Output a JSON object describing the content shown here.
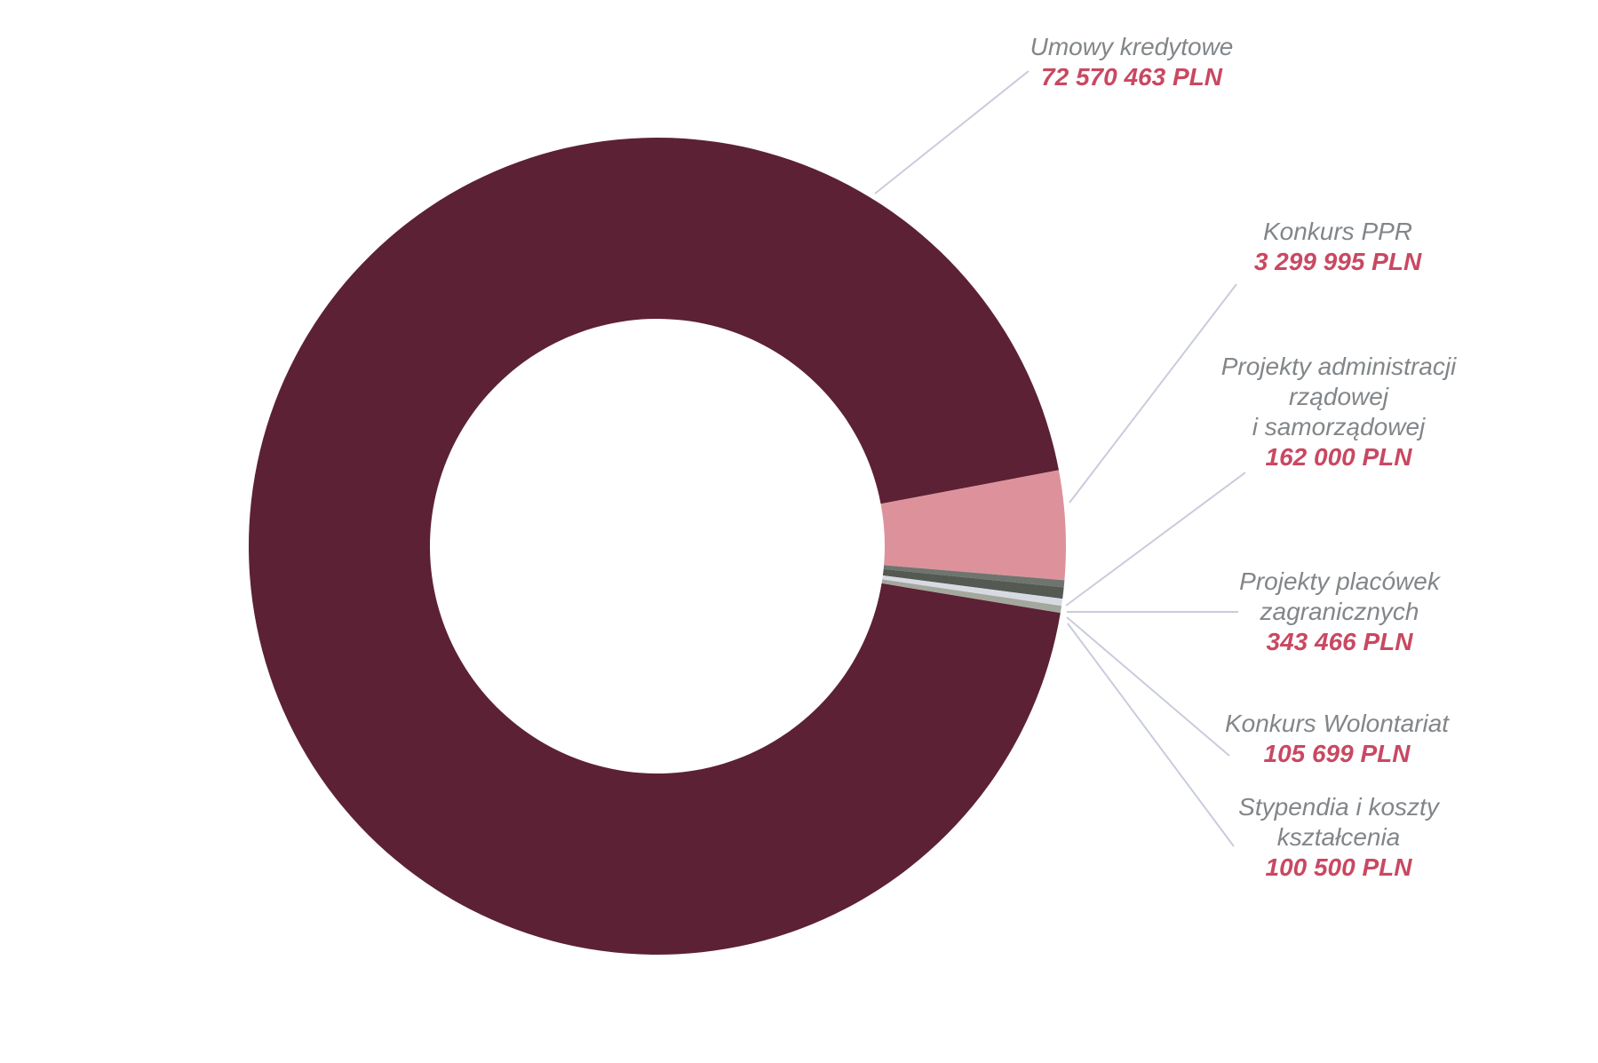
{
  "chart_data": {
    "type": "donut",
    "title": "",
    "unit": "PLN",
    "total": 76582123,
    "background": "#FFFFFF",
    "legend_position": "right-callouts",
    "callout_line_color": "#C9CCDC",
    "label_name_color": "#828689",
    "label_value_color": "#C94862",
    "slices": [
      {
        "slug": "umowy-kredytowe",
        "label": "Umowy kredytowe",
        "label_lines": [
          "Umowy kredytowe"
        ],
        "value": 72570463,
        "value_text": "72 570 463 PLN",
        "color": "#5C2135"
      },
      {
        "slug": "konkurs-ppr",
        "label": "Konkurs PPR",
        "label_lines": [
          "Konkurs PPR"
        ],
        "value": 3299995,
        "value_text": "3 299 995 PLN",
        "color": "#DD929B"
      },
      {
        "slug": "projekty-administracji-rzadowej-i-samorzadowej",
        "label": "Projekty administracji rządowej i samorządowej",
        "label_lines": [
          "Projekty administracji",
          "rządowej",
          "i samorządowej"
        ],
        "value": 162000,
        "value_text": "162 000 PLN",
        "color": "#6F746F"
      },
      {
        "slug": "projekty-placowek-zagranicznych",
        "label": "Projekty placówek zagranicznych",
        "label_lines": [
          "Projekty placówek",
          "zagranicznych"
        ],
        "value": 343466,
        "value_text": "343 466 PLN",
        "color": "#545A52"
      },
      {
        "slug": "konkurs-wolontariat",
        "label": "Konkurs Wolontariat",
        "label_lines": [
          "Konkurs Wolontariat"
        ],
        "value": 105699,
        "value_text": "105 699 PLN",
        "color": "#D8DAE3"
      },
      {
        "slug": "stypendia-i-koszty-ksztalcenia",
        "label": "Stypendia i koszty kształcenia",
        "label_lines": [
          "Stypendia i koszty",
          "kształcenia"
        ],
        "value": 100500,
        "value_text": "100 500 PLN",
        "color": "#A3A79D"
      }
    ]
  }
}
